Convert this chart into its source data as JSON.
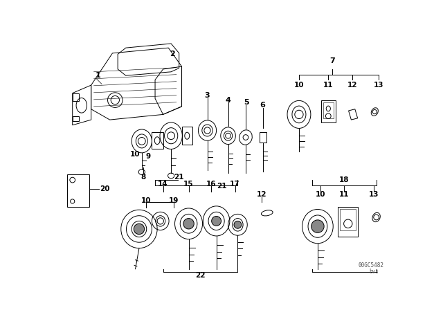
{
  "bg_color": "#ffffff",
  "line_color": "#000000",
  "fig_width": 6.4,
  "fig_height": 4.48,
  "dpi": 100,
  "watermark1": "00GC5482",
  "watermark2": "bvs"
}
